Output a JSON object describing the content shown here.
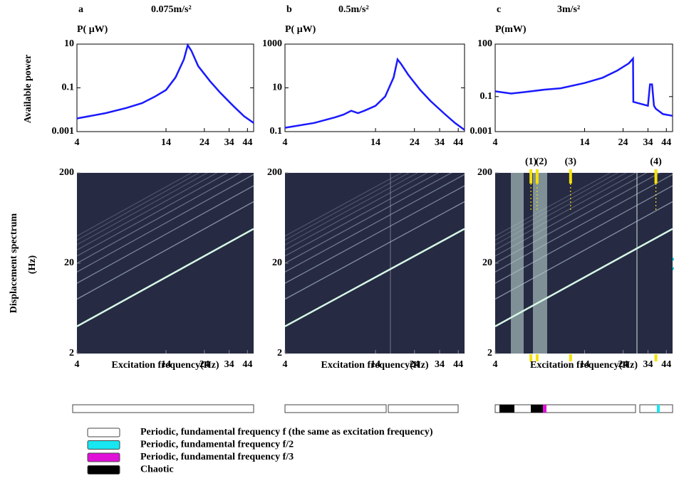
{
  "chart_data": [
    {
      "type": "line",
      "panel": "a",
      "title": "0.075m/s²",
      "ylabel": "P( μW)",
      "side_label": "Available  power",
      "x": [
        4,
        6,
        8,
        10,
        12,
        14,
        16,
        18,
        19,
        20,
        22,
        26,
        30,
        36,
        42,
        48
      ],
      "values": [
        0.004,
        0.007,
        0.012,
        0.02,
        0.04,
        0.08,
        0.3,
        2,
        9,
        5,
        1,
        0.2,
        0.06,
        0.015,
        0.005,
        0.0025
      ],
      "color": "#1a1aff",
      "xscale": "log",
      "yscale": "log",
      "xlim": [
        4,
        48
      ],
      "xticks": [
        4,
        14,
        24,
        34,
        44
      ],
      "ylim": [
        0.001,
        10
      ],
      "yticks": [
        0.001,
        0.1,
        10
      ]
    },
    {
      "type": "line",
      "panel": "b",
      "title": "0.5m/s²",
      "ylabel": "P( μW)",
      "x": [
        4,
        6,
        8,
        9,
        10,
        11,
        12,
        14,
        16,
        18,
        19,
        20,
        22,
        26,
        30,
        36,
        42,
        48
      ],
      "values": [
        0.15,
        0.25,
        0.45,
        0.6,
        0.9,
        0.7,
        0.9,
        1.5,
        4,
        30,
        200,
        120,
        40,
        8,
        2.5,
        0.7,
        0.25,
        0.12
      ],
      "color": "#1a1aff",
      "xscale": "log",
      "yscale": "log",
      "xlim": [
        4,
        48
      ],
      "xticks": [
        4,
        14,
        24,
        34,
        44
      ],
      "ylim": [
        0.1,
        1000
      ],
      "yticks": [
        0.1,
        10,
        1000
      ]
    },
    {
      "type": "line",
      "panel": "c",
      "title": "3m/s²",
      "ylabel": "P(mW)",
      "x": [
        4,
        5,
        6,
        8,
        10,
        14,
        18,
        22,
        26,
        27.6,
        27.7,
        34,
        35,
        36,
        37,
        38,
        42,
        48
      ],
      "values": [
        0.2,
        0.15,
        0.18,
        0.25,
        0.3,
        0.6,
        1.2,
        3,
        8,
        15,
        0.05,
        0.03,
        0.5,
        0.5,
        0.03,
        0.02,
        0.01,
        0.008
      ],
      "color": "#1a1aff",
      "xscale": "log",
      "yscale": "log",
      "xlim": [
        4,
        48
      ],
      "xticks": [
        4,
        14,
        24,
        34,
        44
      ],
      "ylim": [
        0.001,
        100
      ],
      "yticks": [
        0.001,
        0.1,
        100
      ]
    },
    {
      "type": "spectrogram",
      "xlabel": "Excitation frequency(Hz)",
      "side_label": [
        "Displacement spectrum",
        "(Hz)"
      ],
      "color": "#262a42",
      "xscale": "log",
      "yscale": "log",
      "xlim": [
        4,
        48
      ],
      "xticks": [
        4,
        14,
        24,
        34,
        44
      ],
      "ylim": [
        2,
        200
      ],
      "yticks": [
        2,
        20,
        200
      ]
    },
    {
      "type": "spectrogram",
      "xlabel": "Excitation frequency(Hz)",
      "color": "#262a42",
      "xscale": "log",
      "yscale": "log",
      "xlim": [
        4,
        48
      ],
      "xticks": [
        4,
        14,
        24,
        34,
        44
      ],
      "ylim": [
        2,
        200
      ],
      "yticks": [
        2,
        20,
        200
      ]
    },
    {
      "type": "spectrogram",
      "xlabel": "Excitation frequency(Hz)",
      "color": "#262a42",
      "xscale": "log",
      "yscale": "log",
      "xlim": [
        4,
        48
      ],
      "xticks": [
        4,
        14,
        24,
        34,
        44
      ],
      "ylim": [
        2,
        200
      ],
      "yticks": [
        2,
        20,
        200
      ],
      "markers": [
        {
          "label": "(1)",
          "x": 6.6
        },
        {
          "label": "(2)",
          "x": 7.2
        },
        {
          "label": "(3)",
          "x": 11.5
        },
        {
          "label": "(4)",
          "x": 38
        }
      ]
    }
  ],
  "legend": [
    {
      "label": "Periodic, fundamental frequency f (the same as excitation frequency)",
      "color": "#ffffff"
    },
    {
      "label": "Periodic, fundamental frequency f/2",
      "color": "#18e6f0"
    },
    {
      "label": "Periodic, fundamental frequency f/3",
      "color": "#e010d8"
    },
    {
      "label": "Chaotic",
      "color": "#000000"
    }
  ]
}
